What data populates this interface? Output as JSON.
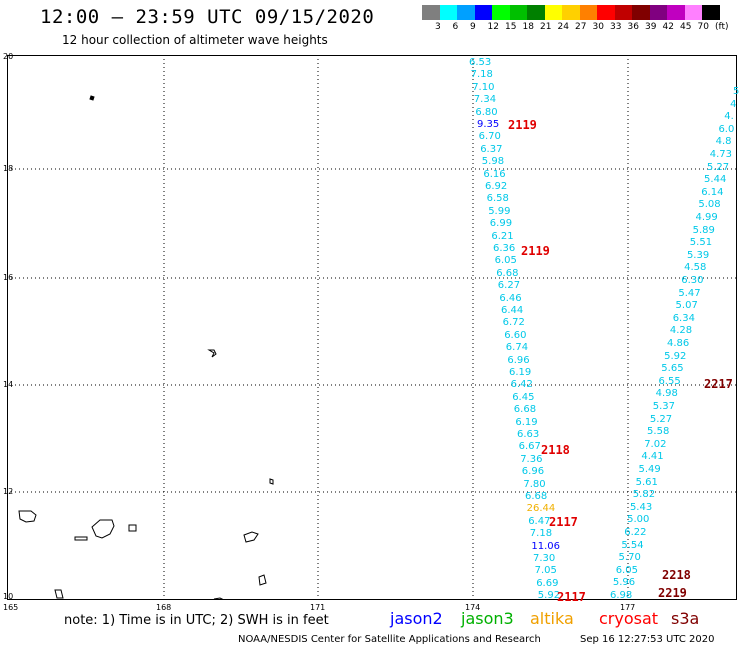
{
  "header": {
    "title": "12:00 – 23:59 UTC 09/15/2020",
    "subtitle": "12 hour collection of altimeter wave heights"
  },
  "legend": {
    "colors": [
      "#7f7f7f",
      "#00ffff",
      "#00a0ff",
      "#0000ff",
      "#00ff00",
      "#00c000",
      "#008000",
      "#ffff00",
      "#ffd000",
      "#ff8000",
      "#ff0000",
      "#c00000",
      "#800000",
      "#800080",
      "#c000c0",
      "#ff80ff",
      "#000000"
    ],
    "labels": [
      "3",
      "6",
      "9",
      "12",
      "15",
      "18",
      "21",
      "24",
      "27",
      "30",
      "33",
      "36",
      "39",
      "42",
      "45",
      "70",
      "(ft)"
    ]
  },
  "axes": {
    "y_labels": [
      "20",
      "18",
      "16",
      "14",
      "12",
      "10"
    ],
    "x_labels": [
      "165",
      "168",
      "171",
      "174",
      "177"
    ]
  },
  "track_left": [
    {
      "v": "6.53",
      "c": "#00c8e8"
    },
    {
      "v": "7.18",
      "c": "#00c8e8"
    },
    {
      "v": "7.10",
      "c": "#00c8e8"
    },
    {
      "v": "7.34",
      "c": "#00c8e8"
    },
    {
      "v": "6.80",
      "c": "#00c8e8"
    },
    {
      "v": "9.35",
      "c": "#0000ff"
    },
    {
      "v": "6.70",
      "c": "#00c8e8"
    },
    {
      "v": "6.37",
      "c": "#00c8e8"
    },
    {
      "v": "5.98",
      "c": "#00c8e8"
    },
    {
      "v": "6.16",
      "c": "#00c8e8"
    },
    {
      "v": "6.92",
      "c": "#00c8e8"
    },
    {
      "v": "6.58",
      "c": "#00c8e8"
    },
    {
      "v": "5.99",
      "c": "#00c8e8"
    },
    {
      "v": "6.99",
      "c": "#00c8e8"
    },
    {
      "v": "6.21",
      "c": "#00c8e8"
    },
    {
      "v": "6.36",
      "c": "#00c8e8"
    },
    {
      "v": "6.05",
      "c": "#00c8e8"
    },
    {
      "v": "6.68",
      "c": "#00c8e8"
    },
    {
      "v": "6.27",
      "c": "#00c8e8"
    },
    {
      "v": "6.46",
      "c": "#00c8e8"
    },
    {
      "v": "6.44",
      "c": "#00c8e8"
    },
    {
      "v": "6.72",
      "c": "#00c8e8"
    },
    {
      "v": "6.60",
      "c": "#00c8e8"
    },
    {
      "v": "6.74",
      "c": "#00c8e8"
    },
    {
      "v": "6.96",
      "c": "#00c8e8"
    },
    {
      "v": "6.19",
      "c": "#00c8e8"
    },
    {
      "v": "6.42",
      "c": "#00c8e8"
    },
    {
      "v": "6.45",
      "c": "#00c8e8"
    },
    {
      "v": "6.68",
      "c": "#00c8e8"
    },
    {
      "v": "6.19",
      "c": "#00c8e8"
    },
    {
      "v": "6.63",
      "c": "#00c8e8"
    },
    {
      "v": "6.67",
      "c": "#00c8e8"
    },
    {
      "v": "7.36",
      "c": "#00c8e8"
    },
    {
      "v": "6.96",
      "c": "#00c8e8"
    },
    {
      "v": "7.80",
      "c": "#00c8e8"
    },
    {
      "v": "6.68",
      "c": "#00c8e8"
    },
    {
      "v": "26.44",
      "c": "#f0b000"
    },
    {
      "v": "6.47",
      "c": "#00c8e8"
    },
    {
      "v": "7.18",
      "c": "#00c8e8"
    },
    {
      "v": "11.06",
      "c": "#0000ff"
    },
    {
      "v": "7.30",
      "c": "#00c8e8"
    },
    {
      "v": "7.05",
      "c": "#00c8e8"
    },
    {
      "v": "6.69",
      "c": "#00c8e8"
    },
    {
      "v": "5.92",
      "c": "#00c8e8"
    }
  ],
  "track_right": [
    "5",
    "4",
    "4.",
    "6.0",
    "4.8",
    "4.73",
    "5.27",
    "5.44",
    "6.14",
    "5.08",
    "4.99",
    "5.89",
    "5.51",
    "5.39",
    "4.58",
    "6.30",
    "5.47",
    "5.07",
    "6.34",
    "4.28",
    "4.86",
    "5.92",
    "5.65",
    "6.55",
    "4.98",
    "5.37",
    "5.27",
    "5.58",
    "7.02",
    "4.41",
    "5.49",
    "5.61",
    "5.82",
    "5.43",
    "5.00",
    "6.22",
    "5.54",
    "5.70",
    "6.05",
    "5.96",
    "6.98"
  ],
  "times": [
    "2119",
    "2119",
    "2118",
    "2117",
    "2117",
    "2217",
    "2218",
    "2219"
  ],
  "footer": {
    "note": "note: 1) Time is in UTC; 2) SWH is in feet",
    "satellites": [
      {
        "name": "jason2",
        "color": "#0000ff"
      },
      {
        "name": "jason3",
        "color": "#00b000"
      },
      {
        "name": "altika",
        "color": "#f0a000"
      },
      {
        "name": "cryosat",
        "color": "#ff0000"
      },
      {
        "name": "s3a",
        "color": "#800000"
      }
    ],
    "credit": "NOAA/NESDIS Center for Satellite Applications and Research",
    "timestamp": "Sep 16 12:27:53 UTC 2020"
  }
}
